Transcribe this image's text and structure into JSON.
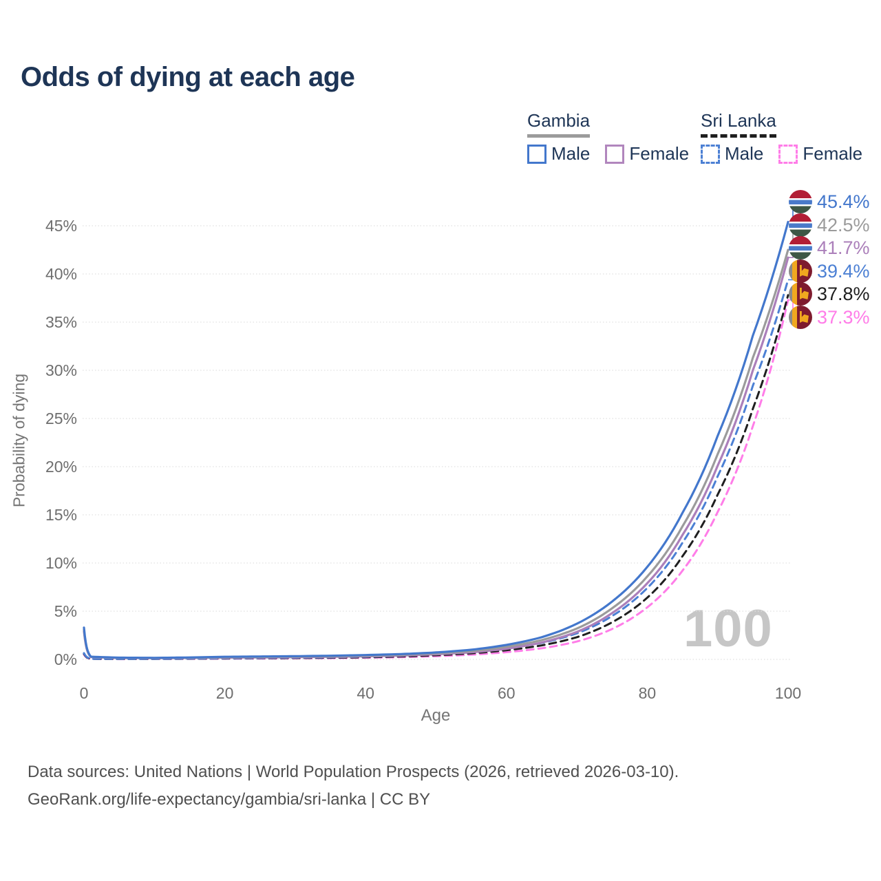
{
  "page": {
    "title": "Odds of dying at each age",
    "watermark": "100"
  },
  "legend": {
    "groups": [
      {
        "label": "Gambia",
        "line_style": "solid",
        "line_color": "#9b9b9b",
        "items": [
          {
            "label": "Male",
            "color": "#4377cc",
            "style": "solid"
          },
          {
            "label": "Female",
            "color": "#b186bd",
            "style": "solid"
          }
        ]
      },
      {
        "label": "Sri Lanka",
        "line_style": "dashed",
        "line_color": "#1f1f1f",
        "items": [
          {
            "label": "Male",
            "color": "#4c80d4",
            "style": "dashed"
          },
          {
            "label": "Female",
            "color": "#ff7de8",
            "style": "dashed"
          }
        ]
      }
    ]
  },
  "axes": {
    "x_label": "Age",
    "y_label": "Probability of dying",
    "x_ticks": [
      "0",
      "20",
      "40",
      "60",
      "80",
      "100"
    ],
    "y_ticks": [
      "0%",
      "5%",
      "10%",
      "15%",
      "20%",
      "25%",
      "30%",
      "35%",
      "40%",
      "45%"
    ]
  },
  "footer": {
    "line1": "Data sources: United Nations | World Population Prospects (2026, retrieved 2026-03-10).",
    "line2": "GeoRank.org/life-expectancy/gambia/sri-lanka | CC BY"
  },
  "chart_data": {
    "type": "line",
    "title": "Odds of dying at each age",
    "xlabel": "Age",
    "ylabel": "Probability of dying",
    "xlim": [
      0,
      100
    ],
    "ylim": [
      0,
      47
    ],
    "grid": "horizontal-dotted",
    "legend_position": "top-right",
    "x": [
      0,
      1,
      5,
      10,
      15,
      20,
      25,
      30,
      35,
      40,
      45,
      50,
      55,
      60,
      65,
      70,
      75,
      80,
      85,
      90,
      95,
      100
    ],
    "series": [
      {
        "name": "Gambia Male",
        "country": "Gambia",
        "sex": "male",
        "style": "solid",
        "color": "#4377cc",
        "flag": "gambia",
        "end_label": "45.4%",
        "end_value": 45.4,
        "values": [
          3.3,
          0.28,
          0.18,
          0.16,
          0.2,
          0.27,
          0.3,
          0.33,
          0.38,
          0.45,
          0.55,
          0.72,
          1.0,
          1.5,
          2.3,
          3.7,
          6.0,
          9.6,
          15.2,
          23.2,
          33.6,
          45.4
        ]
      },
      {
        "name": "Gambia Both sexes",
        "country": "Gambia",
        "sex": "both",
        "style": "solid",
        "color": "#9b9b9b",
        "flag": "gambia",
        "end_label": "42.5%",
        "end_value": 42.5,
        "values": [
          3.1,
          0.26,
          0.16,
          0.14,
          0.17,
          0.22,
          0.25,
          0.28,
          0.32,
          0.38,
          0.47,
          0.62,
          0.86,
          1.3,
          2.0,
          3.2,
          5.3,
          8.6,
          13.8,
          21.3,
          31.3,
          42.5
        ]
      },
      {
        "name": "Gambia Female",
        "country": "Gambia",
        "sex": "female",
        "style": "solid",
        "color": "#ab7fba",
        "flag": "gambia",
        "end_label": "41.7%",
        "end_value": 41.7,
        "values": [
          2.9,
          0.24,
          0.15,
          0.13,
          0.15,
          0.18,
          0.2,
          0.23,
          0.27,
          0.32,
          0.4,
          0.53,
          0.74,
          1.1,
          1.75,
          2.85,
          4.8,
          7.9,
          12.9,
          20.1,
          30.0,
          41.7
        ]
      },
      {
        "name": "Sri Lanka Male",
        "country": "Sri Lanka",
        "sex": "male",
        "style": "dashed",
        "color": "#4c80d4",
        "flag": "srilanka",
        "end_label": "39.4%",
        "end_value": 39.4,
        "values": [
          0.65,
          0.06,
          0.04,
          0.05,
          0.08,
          0.12,
          0.15,
          0.18,
          0.22,
          0.28,
          0.38,
          0.55,
          0.8,
          1.15,
          1.7,
          2.7,
          4.5,
          7.4,
          12.1,
          19.0,
          28.4,
          39.4
        ]
      },
      {
        "name": "Sri Lanka Both sexes",
        "country": "Sri Lanka",
        "sex": "both",
        "style": "dashed",
        "color": "#1f1f1f",
        "flag": "srilanka",
        "end_label": "37.8%",
        "end_value": 37.8,
        "values": [
          0.58,
          0.05,
          0.035,
          0.045,
          0.065,
          0.095,
          0.12,
          0.14,
          0.17,
          0.22,
          0.3,
          0.43,
          0.63,
          0.95,
          1.45,
          2.3,
          3.85,
          6.4,
          10.7,
          17.1,
          26.0,
          37.8
        ]
      },
      {
        "name": "Sri Lanka Female",
        "country": "Sri Lanka",
        "sex": "female",
        "style": "dashed",
        "color": "#ff7de8",
        "flag": "srilanka",
        "end_label": "37.3%",
        "end_value": 37.3,
        "values": [
          0.5,
          0.045,
          0.03,
          0.04,
          0.055,
          0.075,
          0.09,
          0.11,
          0.13,
          0.17,
          0.23,
          0.33,
          0.49,
          0.75,
          1.15,
          1.85,
          3.15,
          5.4,
          9.2,
          15.3,
          24.2,
          37.3
        ]
      }
    ],
    "flag_colors": {
      "gambia": {
        "red": "#b21e35",
        "blue": "#4a7ac9",
        "green": "#3e5745",
        "white": "#ffffff"
      },
      "srilanka": {
        "gold": "#f0a81f",
        "maroon": "#7e1b2e",
        "gray": "#8a8a8a"
      }
    }
  }
}
